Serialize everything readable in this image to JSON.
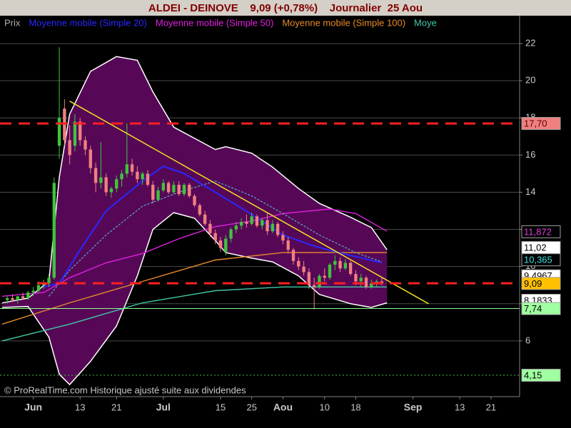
{
  "chart_data": {
    "type": "candlestick",
    "title": "ALDEI - DEINOVE    9,09 (+0,78%)    Journalier  25 Aou",
    "note": "© ProRealTime.com Historique ajusté suite aux dividendes",
    "xlim": [
      -1.4,
      98.5
    ],
    "xticks": [
      {
        "value": 5,
        "label": "Jun"
      },
      {
        "value": 14,
        "label": "13"
      },
      {
        "value": 21,
        "label": "21"
      },
      {
        "value": 30,
        "label": "Jul"
      },
      {
        "value": 41,
        "label": "15"
      },
      {
        "value": 47,
        "label": "25"
      },
      {
        "value": 53,
        "label": "Aou"
      },
      {
        "value": 61,
        "label": "10"
      },
      {
        "value": 67,
        "label": "18"
      },
      {
        "value": 78,
        "label": "Sep"
      },
      {
        "value": 87,
        "label": "13"
      },
      {
        "value": 93,
        "label": "21"
      }
    ],
    "ylim": [
      3,
      23.5
    ],
    "yticks": [
      6,
      8,
      10,
      12,
      14,
      16,
      18,
      20,
      22
    ],
    "grid": true,
    "candles": {
      "name": "Prix",
      "color": "#b0b0b0",
      "up_color": "#3ec43e",
      "down_color": "#f08080",
      "open": [
        8.2,
        8.3,
        8.2,
        8.4,
        8.3,
        8.6,
        8.7,
        9.0,
        9.1,
        9.4,
        16.5,
        18.5,
        16.8,
        16.5,
        17.8,
        16.8,
        16.3,
        15.3,
        14.5,
        14.8,
        14.0,
        14.2,
        14.7,
        15.0,
        15.5,
        15.1,
        14.7,
        15.0,
        14.4,
        13.6,
        14.1,
        14.5,
        14.0,
        14.4,
        13.9,
        14.4,
        13.8,
        13.3,
        12.8,
        12.3,
        11.8,
        11.4,
        10.8,
        11.5,
        12.0,
        12.2,
        12.4,
        12.3,
        12.7,
        12.2,
        12.5,
        11.9,
        12.3,
        11.7,
        11.4,
        10.9,
        10.3,
        10.0,
        9.7,
        9.0,
        8.9,
        9.5,
        9.4,
        10.1,
        10.3,
        9.9,
        10.2,
        9.6,
        9.2,
        9.4,
        8.9,
        9.1,
        9.2
      ],
      "high": [
        8.4,
        8.5,
        8.4,
        8.6,
        8.7,
        8.9,
        9.2,
        9.3,
        9.6,
        14.8,
        21.8,
        19.0,
        17.6,
        18.2,
        18.0,
        17.0,
        16.5,
        15.6,
        16.7,
        15.0,
        14.3,
        14.9,
        15.2,
        17.7,
        15.8,
        15.4,
        15.1,
        15.2,
        14.6,
        14.3,
        14.7,
        14.6,
        14.6,
        14.6,
        14.5,
        14.5,
        13.9,
        13.4,
        13.0,
        12.5,
        12.0,
        11.6,
        11.7,
        12.1,
        12.4,
        12.6,
        12.8,
        12.9,
        12.8,
        12.6,
        12.9,
        12.5,
        12.4,
        11.9,
        11.6,
        11.0,
        10.5,
        10.3,
        9.9,
        9.4,
        9.6,
        9.9,
        10.2,
        10.6,
        10.5,
        10.4,
        10.3,
        9.8,
        9.6,
        9.5,
        9.3,
        9.3,
        9.4
      ],
      "low": [
        8.0,
        8.1,
        8.0,
        8.2,
        8.2,
        8.4,
        8.6,
        8.8,
        8.9,
        9.3,
        15.8,
        16.5,
        15.5,
        16.2,
        16.5,
        16.0,
        15.0,
        14.0,
        14.2,
        13.8,
        13.7,
        14.0,
        14.3,
        14.8,
        14.9,
        14.5,
        14.4,
        14.3,
        13.4,
        13.5,
        14.0,
        13.9,
        13.9,
        13.8,
        13.8,
        13.7,
        13.2,
        12.7,
        12.2,
        11.6,
        11.2,
        10.8,
        10.6,
        11.3,
        11.8,
        12.0,
        12.1,
        12.2,
        12.1,
        12.0,
        11.7,
        11.8,
        11.6,
        11.2,
        10.7,
        10.1,
        9.8,
        9.5,
        8.8,
        7.7,
        8.8,
        9.2,
        9.3,
        9.8,
        9.7,
        9.8,
        9.5,
        9.0,
        8.9,
        8.8,
        8.8,
        8.9,
        9.0
      ],
      "close": [
        8.3,
        8.2,
        8.4,
        8.3,
        8.6,
        8.7,
        9.0,
        9.1,
        9.4,
        14.5,
        18.0,
        16.8,
        16.0,
        17.8,
        16.8,
        16.3,
        15.3,
        14.5,
        14.8,
        14.0,
        14.2,
        14.7,
        15.0,
        15.5,
        15.1,
        14.7,
        15.0,
        14.4,
        13.6,
        14.1,
        14.5,
        14.0,
        14.4,
        13.9,
        14.4,
        13.8,
        13.3,
        12.8,
        12.3,
        11.8,
        11.4,
        11.0,
        11.5,
        12.0,
        12.2,
        12.4,
        12.3,
        12.7,
        12.2,
        12.5,
        11.9,
        12.3,
        11.7,
        11.4,
        10.9,
        10.3,
        10.0,
        9.7,
        9.0,
        8.9,
        9.5,
        9.4,
        10.1,
        10.3,
        9.9,
        10.2,
        9.6,
        9.2,
        9.4,
        8.9,
        9.1,
        9.2,
        9.09
      ]
    },
    "band": {
      "color": "#560856",
      "edge_color": "#ffffff",
      "middle_color": "#5ac8f0",
      "x": [
        -1,
        4,
        8,
        10,
        12,
        16,
        21,
        25,
        28,
        32,
        36,
        40,
        42,
        47,
        51,
        56,
        60,
        66,
        70,
        73
      ],
      "upper": [
        8.04,
        8.3,
        9.2,
        14.8,
        18.2,
        20.5,
        21.3,
        21.1,
        19.4,
        17.5,
        16.9,
        16.3,
        16.45,
        16.1,
        15.35,
        14.2,
        13.4,
        12.65,
        12.1,
        10.9
      ],
      "lower": [
        7.8,
        7.85,
        6.2,
        4.2,
        3.65,
        4.9,
        6.8,
        9.5,
        12.0,
        12.9,
        12.6,
        11.4,
        10.75,
        10.45,
        10.25,
        9.5,
        8.5,
        8.0,
        7.8,
        8.05
      ],
      "middle_x": [
        8,
        12,
        19,
        26,
        33,
        40,
        47,
        53,
        60,
        67,
        72
      ],
      "middle": [
        8.4,
        9.8,
        11.7,
        13.25,
        14.0,
        14.6,
        13.8,
        12.85,
        11.7,
        10.75,
        10.25
      ]
    },
    "series": [
      {
        "name": "Moyenne mobile (Simple 20)",
        "color": "#2828ff",
        "x": [
          7,
          10,
          14,
          19,
          26,
          30,
          34,
          40,
          47,
          53,
          59,
          63,
          72
        ],
        "values": [
          8.9,
          9.1,
          10.9,
          13.0,
          14.6,
          15.4,
          15.0,
          14.0,
          12.8,
          11.7,
          11.1,
          10.8,
          10.2
        ]
      },
      {
        "name": "Moyenne mobile (Simple 50)",
        "color": "#e020e0",
        "x": [
          -1,
          7,
          12,
          19,
          26,
          33,
          40,
          47,
          53,
          62,
          67,
          73
        ],
        "values": [
          8.4,
          8.6,
          9.4,
          10.2,
          10.7,
          11.5,
          12.15,
          12.45,
          12.85,
          13.1,
          12.85,
          11.9
        ]
      },
      {
        "name": "Moyenne mobile (Simple 100)",
        "color": "#e88a2a",
        "x": [
          -1,
          12,
          26,
          40,
          53,
          73
        ],
        "values": [
          6.9,
          8.05,
          9.2,
          10.35,
          10.75,
          10.75
        ]
      },
      {
        "name": "Moye",
        "color": "#40c8a8",
        "x": [
          -1,
          12,
          26,
          40,
          53,
          73
        ],
        "values": [
          6.0,
          6.9,
          8.05,
          8.7,
          8.9,
          8.9
        ]
      }
    ],
    "trendline": {
      "color": "#f0e020",
      "x": [
        12,
        81
      ],
      "values": [
        18.9,
        8.0
      ]
    },
    "levels": [
      {
        "value": 17.7,
        "color": "#ff2020",
        "style": "dashed"
      },
      {
        "value": 9.1,
        "color": "#ff2020",
        "style": "dashed"
      },
      {
        "value": 7.74,
        "color": "#90ff90",
        "style": "solid"
      },
      {
        "value": 4.15,
        "color": "#40c040",
        "style": "dotted"
      }
    ],
    "price_labels": [
      {
        "value": 17.7,
        "label": "17,70",
        "bg": "#f08080",
        "fg": "#600000"
      },
      {
        "value": 11.872,
        "label": "11,872",
        "bg": "#000000",
        "fg": "#e040e0"
      },
      {
        "value": 11.02,
        "label": "11,02",
        "bg": "#ffffff",
        "fg": "#000000"
      },
      {
        "value": 10.365,
        "label": "10,365",
        "bg": "#000000",
        "fg": "#40e0e0"
      },
      {
        "value": 9.4967,
        "label": "9,4967",
        "bg": "#ffffff",
        "fg": "#000000"
      },
      {
        "value": 9.09,
        "label": "9,09",
        "bg": "#ffc000",
        "fg": "#000000"
      },
      {
        "value": 8.1833,
        "label": "8,1833",
        "bg": "#ffffff",
        "fg": "#000000"
      },
      {
        "value": 7.74,
        "label": "7,74",
        "bg": "#a0ffa0",
        "fg": "#000000"
      },
      {
        "value": 4.15,
        "label": "4,15",
        "bg": "#a0ffa0",
        "fg": "#000000"
      }
    ]
  }
}
